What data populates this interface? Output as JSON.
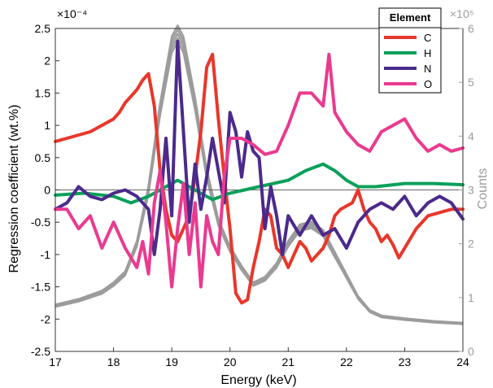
{
  "chart_data": {
    "type": "line",
    "xlabel": "Energy (keV)",
    "ylabel": "Regression coefficient (wt.%)",
    "y2label": "Counts",
    "xlim": [
      17,
      24
    ],
    "ylim": [
      -2.5,
      2.5
    ],
    "y2lim": [
      0,
      6
    ],
    "x_ticks": [
      "17",
      "18",
      "19",
      "20",
      "21",
      "22",
      "23",
      "24"
    ],
    "y_ticks": [
      "2.5",
      "2",
      "1.5",
      "1",
      "0.5",
      "0",
      "-0.5",
      "-1",
      "-1.5",
      "-2",
      "-2.5"
    ],
    "y2_ticks": [
      "6",
      "5",
      "4",
      "3",
      "2",
      "1",
      "0"
    ],
    "y_exponent": "×10⁻⁴",
    "y2_exponent": "×10⁵",
    "grid": false,
    "zero_line": true,
    "legend": {
      "title": "Element",
      "placement": "top-right"
    },
    "series": [
      {
        "name": "C",
        "color": "#e8372b",
        "x": [
          17,
          17.2,
          17.4,
          17.6,
          17.8,
          18,
          18.1,
          18.2,
          18.3,
          18.4,
          18.5,
          18.6,
          18.7,
          18.8,
          18.9,
          19,
          19.1,
          19.2,
          19.3,
          19.4,
          19.5,
          19.6,
          19.7,
          19.8,
          19.9,
          20,
          20.1,
          20.2,
          20.3,
          20.4,
          20.5,
          20.6,
          20.7,
          20.8,
          20.9,
          21,
          21.1,
          21.2,
          21.3,
          21.4,
          21.5,
          21.6,
          21.7,
          21.8,
          21.9,
          22,
          22.1,
          22.2,
          22.3,
          22.4,
          22.5,
          22.6,
          22.7,
          22.8,
          22.9,
          23,
          23.2,
          23.4,
          23.6,
          23.8,
          24
        ],
        "y": [
          0.75,
          0.8,
          0.85,
          0.9,
          1.0,
          1.1,
          1.2,
          1.35,
          1.45,
          1.55,
          1.7,
          1.8,
          1.3,
          0.3,
          -0.3,
          -0.7,
          -0.8,
          -0.6,
          -0.4,
          0.2,
          0.9,
          1.9,
          2.1,
          1.1,
          0.2,
          -0.6,
          -1.6,
          -1.75,
          -1.7,
          -1.2,
          -0.8,
          -0.3,
          -0.4,
          -0.9,
          -1.0,
          -1.2,
          -1.0,
          -0.8,
          -0.9,
          -1.1,
          -1.0,
          -0.9,
          -0.7,
          -0.4,
          -0.3,
          -0.25,
          -0.2,
          0.0,
          -0.3,
          -0.5,
          -0.6,
          -0.8,
          -0.7,
          -0.85,
          -1.05,
          -0.9,
          -0.6,
          -0.4,
          -0.35,
          -0.3,
          -0.3
        ]
      },
      {
        "name": "H",
        "color": "#0aa05a",
        "x": [
          17,
          17.5,
          18,
          18.3,
          18.6,
          18.9,
          19.1,
          19.3,
          19.5,
          19.7,
          20,
          20.5,
          21,
          21.3,
          21.6,
          21.8,
          22,
          22.2,
          22.5,
          23,
          23.5,
          24
        ],
        "y": [
          -0.08,
          -0.05,
          -0.1,
          -0.2,
          -0.1,
          0.05,
          0.15,
          0.05,
          -0.05,
          -0.15,
          -0.05,
          0.05,
          0.15,
          0.3,
          0.4,
          0.3,
          0.15,
          0.05,
          0.05,
          0.1,
          0.1,
          0.08
        ]
      },
      {
        "name": "N",
        "color": "#4b2a8b",
        "x": [
          17,
          17.2,
          17.4,
          17.6,
          17.8,
          18,
          18.2,
          18.4,
          18.6,
          18.7,
          18.8,
          18.9,
          19,
          19.1,
          19.2,
          19.3,
          19.4,
          19.5,
          19.6,
          19.7,
          19.8,
          19.9,
          20,
          20.1,
          20.2,
          20.3,
          20.4,
          20.5,
          20.6,
          20.7,
          20.8,
          20.9,
          21,
          21.2,
          21.4,
          21.6,
          21.8,
          22,
          22.2,
          22.4,
          22.6,
          22.8,
          23,
          23.2,
          23.4,
          23.6,
          23.8,
          24
        ],
        "y": [
          -0.3,
          -0.2,
          0.05,
          -0.1,
          -0.15,
          -0.05,
          0.0,
          -0.1,
          -0.3,
          -1.0,
          -0.3,
          0.8,
          -0.4,
          2.3,
          0.9,
          -0.5,
          0.4,
          -0.3,
          0.2,
          0.8,
          0.3,
          -0.2,
          1.2,
          0.9,
          0.2,
          0.9,
          0.6,
          0.5,
          -0.6,
          0.05,
          -0.4,
          -1.0,
          -0.4,
          -0.7,
          -0.4,
          -0.7,
          -0.6,
          -0.9,
          -0.5,
          -0.3,
          -0.2,
          -0.3,
          -0.1,
          -0.4,
          -0.2,
          -0.1,
          -0.2,
          -0.45
        ]
      },
      {
        "name": "O",
        "color": "#ea3a8f",
        "x": [
          17,
          17.2,
          17.4,
          17.6,
          17.8,
          18,
          18.2,
          18.4,
          18.5,
          18.6,
          18.7,
          18.8,
          18.9,
          19,
          19.1,
          19.2,
          19.3,
          19.4,
          19.5,
          19.6,
          19.7,
          19.8,
          19.9,
          20,
          20.2,
          20.4,
          20.6,
          20.8,
          21,
          21.2,
          21.4,
          21.6,
          21.7,
          21.8,
          22,
          22.2,
          22.4,
          22.6,
          22.8,
          23,
          23.2,
          23.4,
          23.6,
          23.8,
          24
        ],
        "y": [
          -0.3,
          -0.3,
          -0.6,
          -0.4,
          -0.9,
          -0.5,
          -0.9,
          -1.2,
          -0.8,
          -1.3,
          -0.2,
          0.3,
          -0.5,
          -1.5,
          -0.6,
          0.1,
          -1.0,
          -0.2,
          -1.5,
          -0.4,
          -0.8,
          -1.0,
          0.2,
          0.8,
          0.8,
          0.7,
          0.55,
          0.6,
          1.0,
          1.5,
          1.5,
          1.3,
          2.1,
          1.2,
          0.9,
          0.7,
          0.6,
          0.9,
          1.0,
          1.1,
          0.8,
          0.6,
          0.7,
          0.6,
          0.65
        ]
      }
    ],
    "counts_spectra": {
      "color": "#9c9c9c",
      "axis": "right",
      "x": [
        17,
        17.4,
        17.8,
        18.0,
        18.2,
        18.4,
        18.6,
        18.8,
        19.0,
        19.1,
        19.2,
        19.4,
        19.6,
        19.8,
        20.0,
        20.2,
        20.4,
        20.6,
        20.8,
        21.0,
        21.2,
        21.4,
        21.6,
        21.8,
        22.0,
        22.2,
        22.4,
        22.6,
        23.0,
        23.5,
        24
      ],
      "y": [
        0.85,
        0.95,
        1.1,
        1.25,
        1.45,
        2.0,
        3.0,
        4.5,
        5.7,
        5.9,
        5.7,
        4.6,
        3.3,
        2.4,
        1.9,
        1.55,
        1.25,
        1.35,
        1.6,
        2.0,
        2.3,
        2.35,
        2.2,
        1.8,
        1.4,
        1.0,
        0.75,
        0.65,
        0.6,
        0.55,
        0.52
      ]
    }
  }
}
